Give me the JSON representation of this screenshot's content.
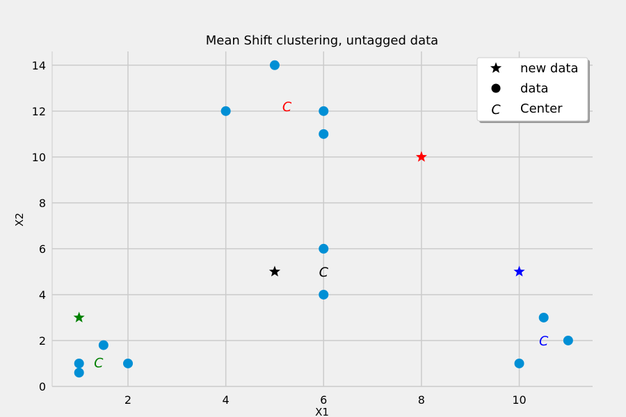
{
  "chart_data": {
    "type": "scatter",
    "title": "Mean Shift clustering, untagged data",
    "xlabel": "X1",
    "ylabel": "X2",
    "xlim": [
      0.45,
      11.5
    ],
    "ylim": [
      0,
      14.6
    ],
    "xticks": [
      2,
      4,
      6,
      8,
      10
    ],
    "yticks": [
      0,
      2,
      4,
      6,
      8,
      10,
      12,
      14
    ],
    "grid": true,
    "legend": {
      "placement": "top-right",
      "entries": [
        {
          "marker": "star",
          "label": "new data"
        },
        {
          "marker": "circle",
          "label": "data"
        },
        {
          "marker": "C",
          "label": "Center"
        }
      ]
    },
    "series": [
      {
        "name": "data",
        "marker": "circle",
        "color": "#008fd5",
        "points": [
          [
            1,
            0.6
          ],
          [
            1,
            1
          ],
          [
            1.5,
            1.8
          ],
          [
            2,
            1
          ],
          [
            4,
            12
          ],
          [
            5,
            14
          ],
          [
            6,
            12
          ],
          [
            6,
            11
          ],
          [
            6,
            6
          ],
          [
            6,
            4
          ],
          [
            10,
            1
          ],
          [
            10.5,
            3
          ],
          [
            11,
            2
          ]
        ]
      },
      {
        "name": "new data",
        "marker": "star",
        "points": [
          {
            "x": 1,
            "y": 3,
            "color": "#008000"
          },
          {
            "x": 5,
            "y": 5,
            "color": "#000000"
          },
          {
            "x": 8,
            "y": 10,
            "color": "#ff0000"
          },
          {
            "x": 10,
            "y": 5,
            "color": "#0000ff"
          }
        ]
      },
      {
        "name": "Center",
        "marker": "C",
        "points": [
          {
            "x": 1.4,
            "y": 1.05,
            "color": "#008000",
            "label": "C"
          },
          {
            "x": 5.25,
            "y": 12.2,
            "color": "#ff0000",
            "label": "C"
          },
          {
            "x": 6,
            "y": 5,
            "color": "#000000",
            "label": "C"
          },
          {
            "x": 10.5,
            "y": 2,
            "color": "#0000ff",
            "label": "C"
          }
        ]
      }
    ]
  },
  "colors": {
    "background": "#f0f0f0",
    "plot_area": "#f0f0f0",
    "grid": "#cbcbcb",
    "data_point": "#008fd5"
  }
}
